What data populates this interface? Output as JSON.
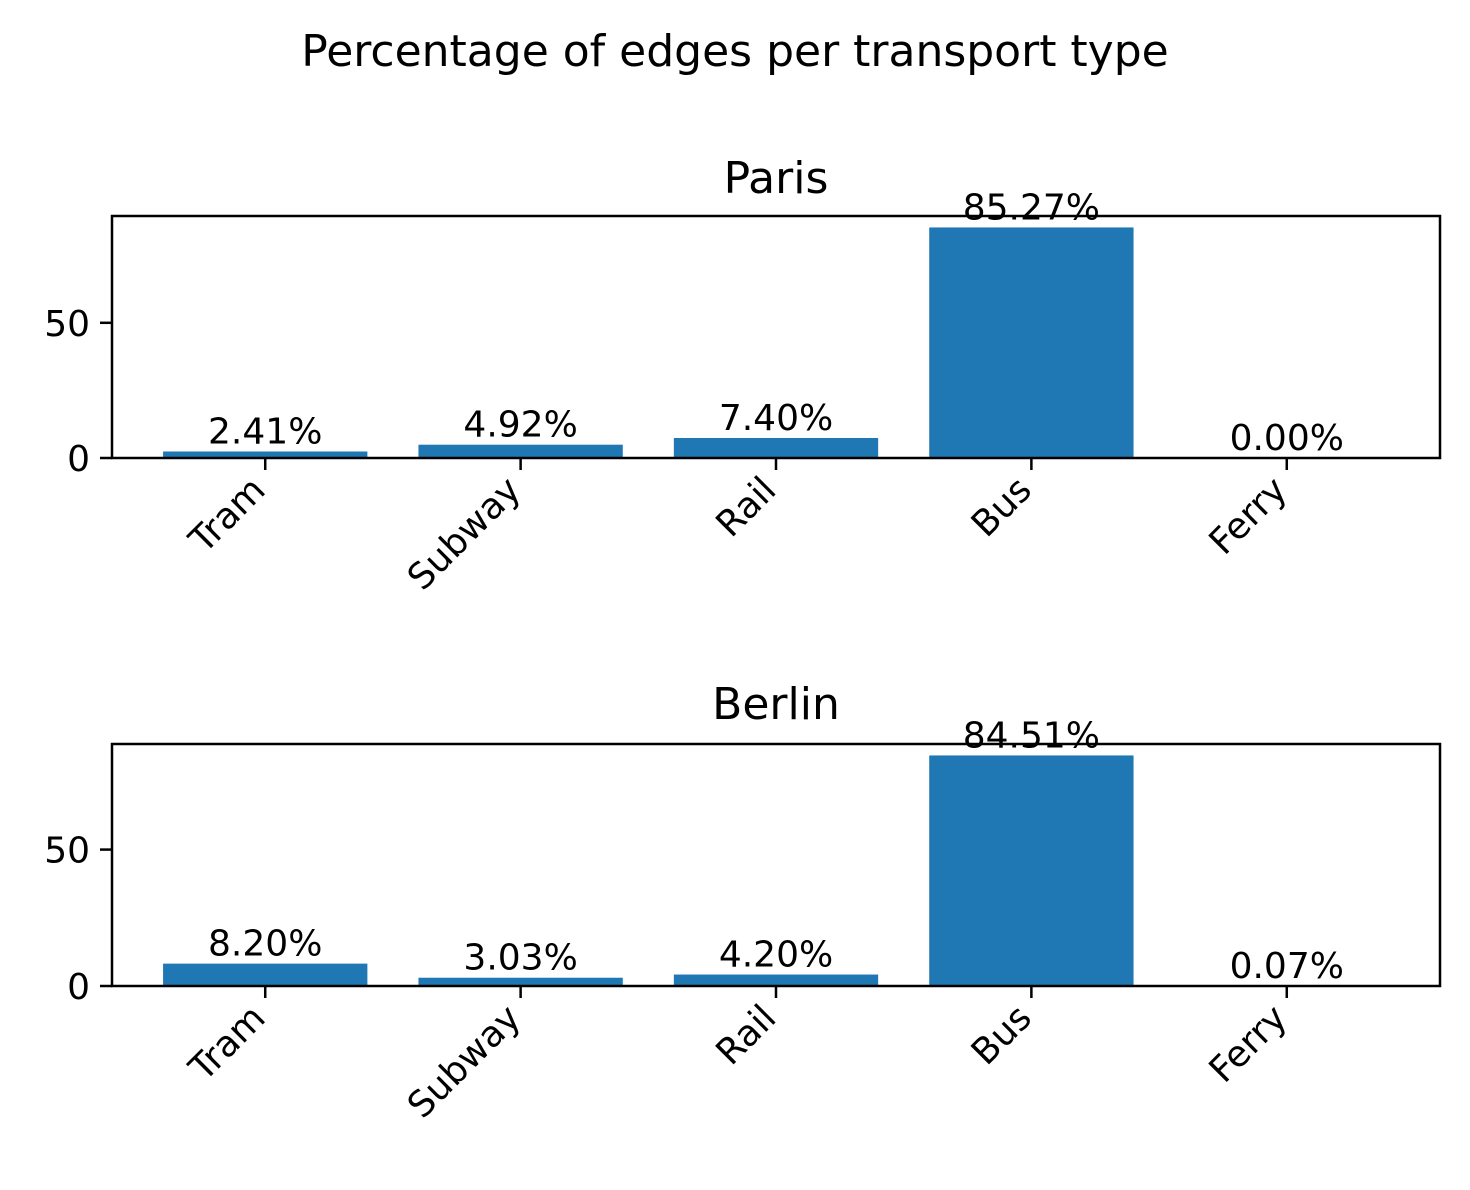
{
  "figure": {
    "title": "Percentage of edges per transport type"
  },
  "colors": {
    "bar": "#1f77b4",
    "axis": "#000000"
  },
  "chart_data": [
    {
      "type": "bar",
      "title": "Paris",
      "categories": [
        "Tram",
        "Subway",
        "Rail",
        "Bus",
        "Ferry"
      ],
      "values": [
        2.41,
        4.92,
        7.4,
        85.27,
        0.0
      ],
      "bar_labels": [
        "2.41%",
        "4.92%",
        "7.40%",
        "85.27%",
        "0.00%"
      ],
      "ylim": [
        0,
        89.5
      ],
      "yticks": [
        0,
        50
      ],
      "xlabel": "",
      "ylabel": "",
      "grid": false
    },
    {
      "type": "bar",
      "title": "Berlin",
      "categories": [
        "Tram",
        "Subway",
        "Rail",
        "Bus",
        "Ferry"
      ],
      "values": [
        8.2,
        3.03,
        4.2,
        84.51,
        0.07
      ],
      "bar_labels": [
        "8.20%",
        "3.03%",
        "4.20%",
        "84.51%",
        "0.07%"
      ],
      "ylim": [
        0,
        88.7
      ],
      "yticks": [
        0,
        50
      ],
      "xlabel": "",
      "ylabel": "",
      "grid": false
    }
  ]
}
